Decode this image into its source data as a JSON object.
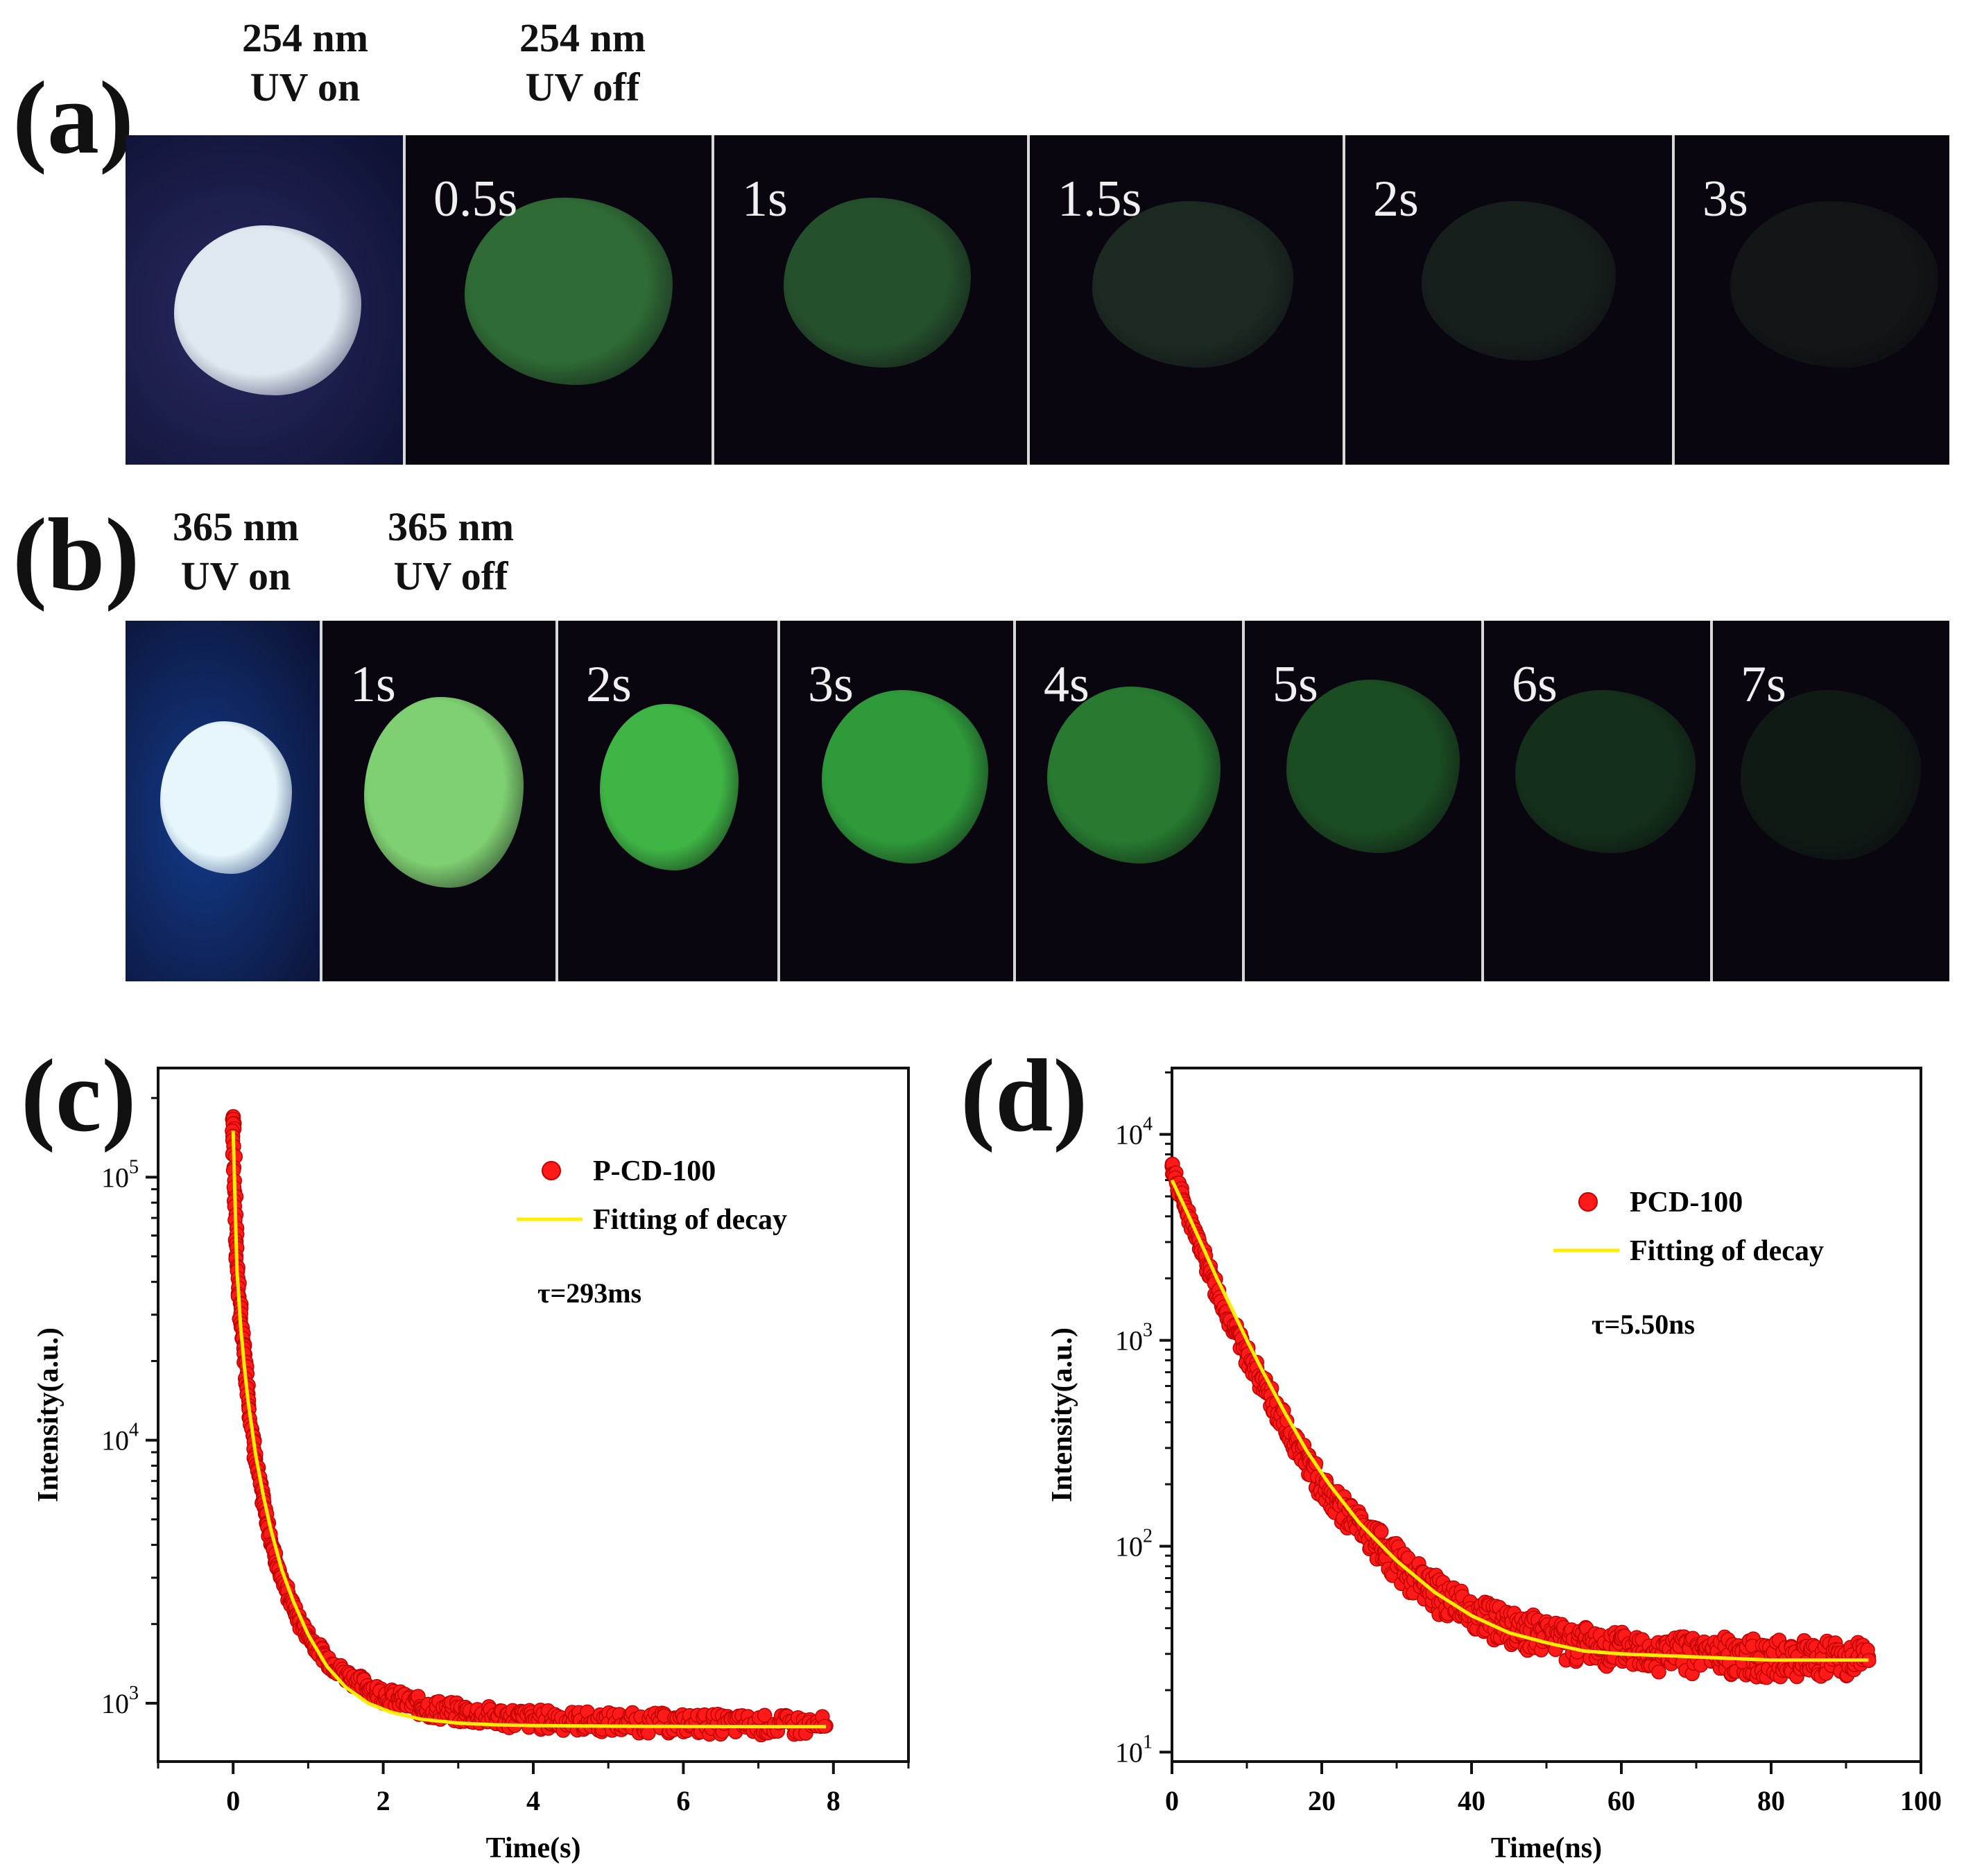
{
  "panel_a": {
    "letter": "(a)",
    "uv_on_caption": [
      "254 nm",
      "UV on"
    ],
    "uv_off_caption": [
      "254 nm",
      "UV off"
    ],
    "frames": [
      {
        "label": "",
        "kind": "uv_on",
        "bg": "#2a2a63",
        "glow": "#dfe8ee"
      },
      {
        "label": "0.5s",
        "kind": "after",
        "glow": "#2f6b35"
      },
      {
        "label": "1s",
        "kind": "after",
        "glow": "#25502c"
      },
      {
        "label": "1.5s",
        "kind": "after",
        "glow": "#1c2a22"
      },
      {
        "label": "2s",
        "kind": "after",
        "glow": "#171f1c"
      },
      {
        "label": "3s",
        "kind": "after",
        "glow": "#121617"
      }
    ]
  },
  "panel_b": {
    "letter": "(b)",
    "uv_on_caption": [
      "365 nm",
      "UV on"
    ],
    "uv_off_caption": [
      "365 nm",
      "UV off"
    ],
    "frames": [
      {
        "label": "",
        "kind": "uv_on",
        "bg": "#123b8a",
        "glow": "#e6f6fb"
      },
      {
        "label": "1s",
        "kind": "after",
        "glow": "#7fd072"
      },
      {
        "label": "2s",
        "kind": "after",
        "glow": "#3fb545"
      },
      {
        "label": "3s",
        "kind": "after",
        "glow": "#2f9a3a"
      },
      {
        "label": "4s",
        "kind": "after",
        "glow": "#277a30"
      },
      {
        "label": "5s",
        "kind": "after",
        "glow": "#1b4d22"
      },
      {
        "label": "6s",
        "kind": "after",
        "glow": "#14301a"
      },
      {
        "label": "7s",
        "kind": "after",
        "glow": "#101a14"
      }
    ]
  },
  "panel_c": {
    "letter": "(c)"
  },
  "panel_d": {
    "letter": "(d)"
  },
  "chart_data": [
    {
      "type": "scatter",
      "panel": "c",
      "xlabel": "Time(s)",
      "ylabel": "Intensity(a.u.)",
      "xlim": [
        -1,
        9
      ],
      "ylim": [
        600,
        260000
      ],
      "yscale": "log",
      "xticks": [
        0,
        2,
        4,
        6,
        8
      ],
      "yticks": [
        {
          "value": 1000,
          "base": "10",
          "exp": "3"
        },
        {
          "value": 10000,
          "base": "10",
          "exp": "4"
        },
        {
          "value": 100000,
          "base": "10",
          "exp": "5"
        }
      ],
      "legend_position": "top-right",
      "annotation": "τ=293ms",
      "series": [
        {
          "name": "P-CD-100",
          "kind": "markers",
          "color": "#ff1a1a",
          "x": [
            0,
            0.02,
            0.04,
            0.06,
            0.08,
            0.1,
            0.13,
            0.16,
            0.2,
            0.25,
            0.3,
            0.4,
            0.5,
            0.6,
            0.75,
            0.9,
            1.1,
            1.3,
            1.5,
            1.75,
            2.0,
            2.3,
            2.6,
            3.0,
            3.5,
            4.0,
            4.5,
            5.0,
            5.5,
            6.0,
            6.5,
            7.0,
            7.5,
            7.9
          ],
          "y": [
            170000,
            88000,
            57000,
            44000,
            35000,
            29000,
            24000,
            20000,
            15000,
            11000,
            8500,
            5800,
            4200,
            3300,
            2500,
            2000,
            1650,
            1420,
            1280,
            1170,
            1080,
            1010,
            960,
            920,
            890,
            870,
            860,
            850,
            845,
            840,
            835,
            830,
            825,
            820
          ]
        },
        {
          "name": "Fitting of decay",
          "kind": "line",
          "color": "#ffee00",
          "x": [
            0,
            0.05,
            0.1,
            0.15,
            0.2,
            0.3,
            0.4,
            0.5,
            0.65,
            0.8,
            1.0,
            1.25,
            1.5,
            1.8,
            2.1,
            2.5,
            3.0,
            3.5,
            4.0,
            5.0,
            6.0,
            7.0,
            7.9
          ],
          "y": [
            150000,
            45000,
            27000,
            19000,
            14000,
            8800,
            6200,
            4600,
            3200,
            2450,
            1820,
            1380,
            1150,
            1000,
            925,
            870,
            840,
            828,
            822,
            818,
            816,
            815,
            815
          ]
        }
      ]
    },
    {
      "type": "scatter",
      "panel": "d",
      "xlabel": "Time(ns)",
      "ylabel": "Intensity(a.u.)",
      "xlim": [
        0,
        100
      ],
      "ylim": [
        9,
        21000
      ],
      "yscale": "log",
      "xticks": [
        0,
        20,
        40,
        60,
        80,
        100
      ],
      "yticks": [
        {
          "value": 10,
          "base": "10",
          "exp": "1"
        },
        {
          "value": 100,
          "base": "10",
          "exp": "2"
        },
        {
          "value": 1000,
          "base": "10",
          "exp": "3"
        },
        {
          "value": 10000,
          "base": "10",
          "exp": "4"
        }
      ],
      "legend_position": "top-right",
      "annotation": "τ=5.50ns",
      "series": [
        {
          "name": "PCD-100",
          "kind": "markers",
          "color": "#ff1a1a",
          "x": [
            0,
            2,
            4,
            6,
            8,
            10,
            12,
            14,
            16,
            18,
            20,
            23,
            26,
            30,
            34,
            38,
            42,
            46,
            50,
            55,
            60,
            65,
            70,
            75,
            80,
            85,
            90,
            93
          ],
          "y": [
            7000,
            4200,
            2700,
            1750,
            1200,
            850,
            620,
            460,
            340,
            260,
            200,
            150,
            115,
            85,
            65,
            52,
            45,
            40,
            37,
            34,
            32,
            31,
            30,
            30,
            29,
            29,
            29,
            29
          ]
        },
        {
          "name": "Fitting of decay",
          "kind": "line",
          "color": "#ffee00",
          "x": [
            0,
            2,
            4,
            6,
            8,
            10,
            12,
            15,
            18,
            21,
            25,
            30,
            35,
            40,
            45,
            50,
            55,
            60,
            70,
            80,
            93
          ],
          "y": [
            6000,
            4200,
            2900,
            2000,
            1420,
            1000,
            720,
            450,
            290,
            200,
            130,
            85,
            60,
            46,
            38,
            34,
            31,
            30,
            29,
            28,
            28
          ]
        }
      ]
    }
  ]
}
